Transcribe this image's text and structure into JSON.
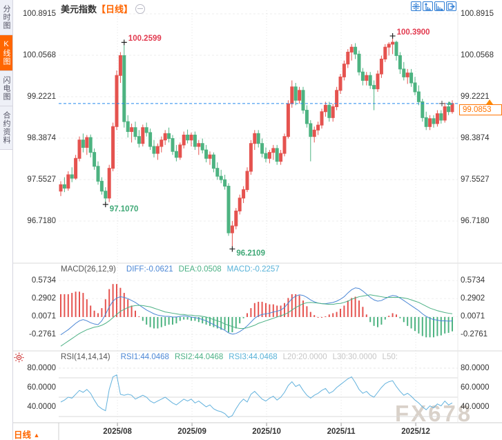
{
  "ui": {
    "title": {
      "name": "美元指数",
      "period": "【日线】"
    },
    "sidebar": {
      "items": [
        {
          "label": "分时图",
          "active": false
        },
        {
          "label": "K线图",
          "active": true
        },
        {
          "label": "闪电图",
          "active": false
        },
        {
          "label": "合约资料",
          "active": false
        }
      ]
    },
    "toolbar": {
      "icons": [
        "crosshair-icon",
        "axis-scale-vertical-icon",
        "axis-scale-horizontal-icon",
        "export-right-icon"
      ]
    },
    "macd_header": {
      "name": "MACD(26,12,9)",
      "diff": "DIFF:-0.0621",
      "dea": "DEA:0.0508",
      "macd": "MACD:-0.2257"
    },
    "rsi_header": {
      "name": "RSI(14,14,14)",
      "rsi1": "RSI1:44.0468",
      "rsi2": "RSI2:44.0468",
      "rsi3": "RSI3:44.0468",
      "l20": "L20:20.0000",
      "l30": "L30:30.0000",
      "l50": "L50:"
    },
    "quote": {
      "last": "99.0853"
    },
    "bottom": {
      "period": "日线",
      "arrow": "▲"
    },
    "watermark": "FX678"
  },
  "colors": {
    "up": "#e5534f",
    "down": "#4db381",
    "diff_line": "#4a86d5",
    "dea_line": "#4cb185",
    "rsi_line": "#63b2dd",
    "current_line": "#2288ee",
    "accent": "#ff6600",
    "ann_high": "#e23b50",
    "ann_low": "#3fa876"
  },
  "chart_data": [
    {
      "type": "candlestick",
      "title": "美元指数 日线 (US Dollar Index, daily)",
      "y_axis_labels": [
        "100.8915",
        "100.0568",
        "99.2221",
        "98.3874",
        "97.5527",
        "96.7180"
      ],
      "current_price": 99.0853,
      "x_ticks": [
        {
          "label": "2025/08",
          "i": 15.2
        },
        {
          "label": "2025/09",
          "i": 35.2
        },
        {
          "label": "2025/10",
          "i": 55.2
        },
        {
          "label": "2025/11",
          "i": 75.2
        },
        {
          "label": "2025/12",
          "i": 95.2
        }
      ],
      "annotations": [
        {
          "text": "100.2599",
          "kind": "high",
          "i": 17
        },
        {
          "text": "97.1070",
          "kind": "low",
          "i": 12
        },
        {
          "text": "96.2109",
          "kind": "low",
          "i": 46
        },
        {
          "text": "100.3900",
          "kind": "high",
          "i": 89
        }
      ],
      "ohlc": [
        [
          97.32,
          97.52,
          97.22,
          97.45
        ],
        [
          97.45,
          97.6,
          97.3,
          97.38
        ],
        [
          97.38,
          97.72,
          97.33,
          97.65
        ],
        [
          97.65,
          97.8,
          97.5,
          97.58
        ],
        [
          97.58,
          98.05,
          97.55,
          97.98
        ],
        [
          97.98,
          98.42,
          97.92,
          98.35
        ],
        [
          98.35,
          98.48,
          98.1,
          98.2
        ],
        [
          98.2,
          98.45,
          98.05,
          98.4
        ],
        [
          98.4,
          98.46,
          98.0,
          98.1
        ],
        [
          98.1,
          98.18,
          97.75,
          97.82
        ],
        [
          97.82,
          97.92,
          97.45,
          97.52
        ],
        [
          97.52,
          97.6,
          97.25,
          97.32
        ],
        [
          97.32,
          97.4,
          97.107,
          97.18
        ],
        [
          97.18,
          97.85,
          97.1,
          97.78
        ],
        [
          97.78,
          98.7,
          97.72,
          98.62
        ],
        [
          98.62,
          99.75,
          98.55,
          99.65
        ],
        [
          99.65,
          100.12,
          99.5,
          100.05
        ],
        [
          100.05,
          100.2599,
          98.6,
          98.72
        ],
        [
          98.72,
          98.85,
          98.4,
          98.52
        ],
        [
          98.52,
          98.68,
          98.3,
          98.6
        ],
        [
          98.6,
          98.72,
          98.35,
          98.42
        ],
        [
          98.42,
          98.55,
          98.2,
          98.28
        ],
        [
          98.28,
          98.66,
          98.22,
          98.6
        ],
        [
          98.6,
          98.7,
          98.42,
          98.5
        ],
        [
          98.5,
          98.58,
          98.15,
          98.22
        ],
        [
          98.22,
          98.35,
          98.0,
          98.08
        ],
        [
          98.08,
          98.28,
          97.95,
          98.22
        ],
        [
          98.22,
          98.42,
          98.1,
          98.35
        ],
        [
          98.35,
          98.55,
          98.25,
          98.48
        ],
        [
          98.48,
          98.6,
          98.3,
          98.38
        ],
        [
          98.38,
          98.45,
          98.05,
          98.12
        ],
        [
          98.12,
          98.25,
          97.92,
          98.0
        ],
        [
          98.0,
          98.3,
          97.95,
          98.25
        ],
        [
          98.25,
          98.52,
          98.18,
          98.45
        ],
        [
          98.45,
          98.56,
          98.28,
          98.35
        ],
        [
          98.35,
          98.5,
          98.22,
          98.45
        ],
        [
          98.45,
          98.52,
          98.15,
          98.22
        ],
        [
          98.22,
          98.35,
          98.05,
          98.28
        ],
        [
          98.28,
          98.38,
          98.08,
          98.15
        ],
        [
          98.15,
          98.25,
          97.9,
          97.98
        ],
        [
          97.98,
          98.12,
          97.85,
          98.05
        ],
        [
          98.05,
          98.1,
          97.7,
          97.78
        ],
        [
          97.78,
          97.9,
          97.55,
          97.62
        ],
        [
          97.62,
          97.75,
          97.48,
          97.55
        ],
        [
          97.55,
          97.65,
          97.35,
          97.42
        ],
        [
          97.42,
          97.48,
          96.42,
          96.48
        ],
        [
          96.48,
          96.72,
          96.2109,
          96.62
        ],
        [
          96.62,
          96.98,
          96.55,
          96.92
        ],
        [
          96.92,
          97.25,
          96.85,
          97.18
        ],
        [
          97.18,
          97.42,
          97.08,
          97.35
        ],
        [
          97.35,
          97.8,
          97.3,
          97.72
        ],
        [
          97.72,
          98.35,
          97.65,
          98.28
        ],
        [
          98.28,
          98.55,
          98.15,
          98.48
        ],
        [
          98.48,
          98.55,
          98.2,
          98.28
        ],
        [
          98.28,
          98.38,
          98.0,
          98.08
        ],
        [
          98.08,
          98.2,
          97.9,
          97.98
        ],
        [
          97.98,
          98.15,
          97.88,
          98.1
        ],
        [
          98.1,
          98.25,
          97.95,
          98.18
        ],
        [
          98.18,
          98.25,
          97.85,
          97.92
        ],
        [
          97.92,
          98.15,
          97.85,
          98.08
        ],
        [
          98.08,
          98.48,
          98.02,
          98.42
        ],
        [
          98.42,
          99.15,
          98.38,
          99.08
        ],
        [
          99.08,
          99.55,
          99.0,
          99.42
        ],
        [
          99.42,
          99.5,
          99.05,
          99.15
        ],
        [
          99.15,
          99.42,
          99.08,
          99.35
        ],
        [
          99.35,
          99.42,
          98.88,
          98.95
        ],
        [
          98.95,
          99.05,
          98.6,
          98.68
        ],
        [
          98.68,
          98.75,
          97.92,
          98.42
        ],
        [
          98.42,
          98.62,
          98.3,
          98.55
        ],
        [
          98.55,
          98.72,
          98.45,
          98.65
        ],
        [
          98.65,
          98.98,
          98.58,
          98.92
        ],
        [
          98.92,
          99.12,
          98.82,
          99.05
        ],
        [
          99.05,
          99.12,
          98.72,
          98.8
        ],
        [
          98.8,
          99.08,
          98.72,
          99.02
        ],
        [
          99.02,
          99.42,
          98.95,
          99.35
        ],
        [
          99.35,
          99.68,
          99.28,
          99.62
        ],
        [
          99.62,
          99.95,
          99.55,
          99.88
        ],
        [
          99.88,
          100.18,
          99.8,
          100.12
        ],
        [
          100.12,
          100.28,
          99.95,
          100.22
        ],
        [
          100.22,
          100.3,
          99.98,
          100.08
        ],
        [
          100.08,
          100.15,
          99.65,
          99.72
        ],
        [
          99.72,
          99.8,
          99.45,
          99.55
        ],
        [
          99.55,
          99.72,
          99.45,
          99.65
        ],
        [
          99.65,
          99.72,
          99.38,
          99.45
        ],
        [
          99.45,
          99.55,
          98.95,
          99.38
        ],
        [
          99.38,
          99.75,
          99.32,
          99.68
        ],
        [
          99.68,
          100.05,
          99.6,
          99.98
        ],
        [
          99.98,
          100.28,
          99.92,
          100.22
        ],
        [
          100.22,
          100.32,
          100.05,
          100.28
        ],
        [
          100.28,
          100.39,
          100.08,
          100.32
        ],
        [
          100.32,
          100.35,
          99.95,
          100.05
        ],
        [
          100.05,
          100.12,
          99.68,
          99.78
        ],
        [
          99.78,
          99.92,
          99.55,
          99.62
        ],
        [
          99.62,
          99.78,
          99.48,
          99.7
        ],
        [
          99.7,
          99.78,
          99.42,
          99.5
        ],
        [
          99.5,
          99.62,
          99.25,
          99.32
        ],
        [
          99.32,
          99.45,
          99.05,
          99.12
        ],
        [
          99.12,
          99.18,
          98.72,
          98.8
        ],
        [
          98.8,
          98.92,
          98.55,
          98.62
        ],
        [
          98.62,
          98.85,
          98.55,
          98.78
        ],
        [
          98.78,
          98.85,
          98.6,
          98.68
        ],
        [
          98.68,
          98.95,
          98.62,
          98.88
        ],
        [
          98.88,
          98.95,
          98.68,
          98.75
        ],
        [
          98.75,
          99.1,
          98.7,
          99.02
        ],
        [
          99.02,
          99.12,
          98.85,
          98.92
        ],
        [
          98.92,
          99.15,
          98.88,
          99.0853
        ]
      ]
    },
    {
      "type": "bar+line",
      "title": "MACD(26,12,9)",
      "y_axis_labels": [
        "0.5734",
        "0.2902",
        "0.0071",
        "-0.2761"
      ],
      "hist_formula": "2*(DIFF-DEA)",
      "diff": [
        -0.28,
        -0.24,
        -0.2,
        -0.15,
        -0.1,
        -0.06,
        -0.04,
        -0.06,
        -0.09,
        -0.11,
        -0.12,
        -0.06,
        0.04,
        0.16,
        0.25,
        0.3,
        0.32,
        0.31,
        0.29,
        0.26,
        0.23,
        0.19,
        0.15,
        0.11,
        0.08,
        0.05,
        0.03,
        0.02,
        0.01,
        0.01,
        0.0,
        0.0,
        0.01,
        0.02,
        0.01,
        0.0,
        -0.01,
        -0.02,
        -0.04,
        -0.06,
        -0.09,
        -0.12,
        -0.15,
        -0.18,
        -0.21,
        -0.25,
        -0.27,
        -0.26,
        -0.23,
        -0.19,
        -0.14,
        -0.08,
        -0.02,
        0.02,
        0.04,
        0.05,
        0.06,
        0.08,
        0.09,
        0.11,
        0.15,
        0.22,
        0.29,
        0.33,
        0.35,
        0.34,
        0.31,
        0.27,
        0.24,
        0.22,
        0.21,
        0.21,
        0.22,
        0.23,
        0.25,
        0.28,
        0.32,
        0.38,
        0.43,
        0.46,
        0.45,
        0.41,
        0.36,
        0.31,
        0.27,
        0.25,
        0.26,
        0.29,
        0.32,
        0.34,
        0.33,
        0.3,
        0.26,
        0.22,
        0.18,
        0.14,
        0.1,
        0.05,
        0.01,
        -0.02,
        -0.04,
        -0.05,
        -0.06,
        -0.06,
        -0.065,
        -0.0621
      ],
      "dea": [
        -0.46,
        -0.42,
        -0.38,
        -0.34,
        -0.3,
        -0.26,
        -0.23,
        -0.2,
        -0.18,
        -0.16,
        -0.15,
        -0.13,
        -0.1,
        -0.06,
        -0.01,
        0.04,
        0.09,
        0.12,
        0.15,
        0.17,
        0.18,
        0.185,
        0.18,
        0.17,
        0.16,
        0.14,
        0.12,
        0.1,
        0.08,
        0.07,
        0.06,
        0.05,
        0.04,
        0.04,
        0.03,
        0.03,
        0.02,
        0.02,
        0.01,
        0.0,
        -0.02,
        -0.04,
        -0.06,
        -0.08,
        -0.11,
        -0.13,
        -0.15,
        -0.17,
        -0.18,
        -0.18,
        -0.17,
        -0.15,
        -0.13,
        -0.1,
        -0.08,
        -0.06,
        -0.04,
        -0.02,
        0.0,
        0.02,
        0.04,
        0.07,
        0.11,
        0.15,
        0.18,
        0.21,
        0.225,
        0.23,
        0.225,
        0.22,
        0.21,
        0.205,
        0.2,
        0.2,
        0.21,
        0.215,
        0.23,
        0.25,
        0.28,
        0.3,
        0.32,
        0.33,
        0.34,
        0.35,
        0.34,
        0.33,
        0.32,
        0.31,
        0.31,
        0.31,
        0.31,
        0.31,
        0.3,
        0.29,
        0.27,
        0.25,
        0.23,
        0.2,
        0.17,
        0.14,
        0.12,
        0.1,
        0.085,
        0.07,
        0.06,
        0.0508
      ]
    },
    {
      "type": "line",
      "title": "RSI(14,14,14)",
      "y_axis_labels": [
        "80.0000",
        "60.0000",
        "40.0000"
      ],
      "levels_solid": [
        70,
        50,
        30
      ],
      "levels_dashed": [
        80
      ],
      "values": [
        45,
        47,
        50,
        49,
        53,
        57,
        55,
        58,
        54,
        47,
        41,
        38,
        36,
        58,
        71,
        73,
        53,
        52,
        53,
        52,
        48,
        50,
        52,
        50,
        46,
        44,
        46,
        48,
        50,
        47,
        44,
        42,
        45,
        48,
        46,
        48,
        44,
        46,
        43,
        40,
        42,
        38,
        36,
        35,
        33,
        29,
        31,
        38,
        44,
        48,
        45,
        53,
        56,
        52,
        48,
        46,
        49,
        51,
        47,
        50,
        55,
        62,
        66,
        61,
        63,
        57,
        52,
        49,
        52,
        54,
        57,
        59,
        54,
        56,
        60,
        63,
        66,
        69,
        71,
        65,
        58,
        54,
        56,
        52,
        50,
        55,
        60,
        64,
        66,
        67,
        61,
        56,
        52,
        54,
        51,
        47,
        44,
        40,
        37,
        41,
        39,
        43,
        41,
        46,
        42,
        44.0468
      ]
    }
  ]
}
